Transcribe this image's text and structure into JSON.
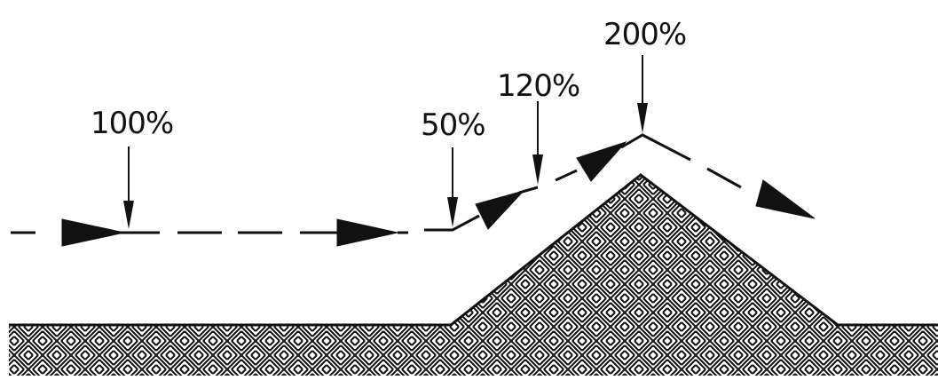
{
  "diagram": {
    "labels": {
      "flat_upstream": "100%",
      "hill_foot": "50%",
      "hill_slope": "120%",
      "hill_crest": "200%"
    },
    "colors": {
      "ink": "#111111",
      "background": "#ffffff"
    }
  }
}
